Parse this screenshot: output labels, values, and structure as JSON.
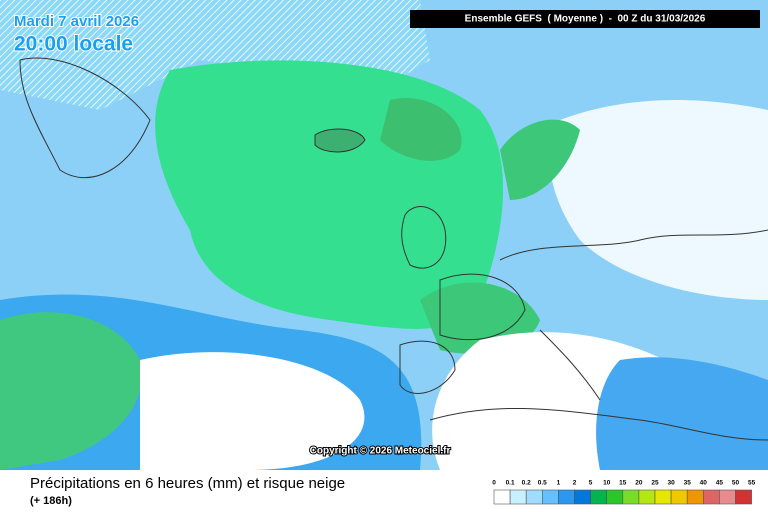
{
  "header": {
    "date": "Mardi 7 avril 2026",
    "time": "20:00 locale",
    "model": "Ensemble GEFS  ( Moyenne )  -  00 Z du 31/03/2026"
  },
  "copyright": "Copyright © 2026 Meteociel.fr",
  "footer": {
    "title": "Précipitations en 6 heures (mm) et risque neige",
    "lead": "(+ 186h)"
  },
  "legend": {
    "labels": [
      "0",
      "0.1",
      "0.2",
      "0.5",
      "1",
      "2",
      "5",
      "10",
      "15",
      "20",
      "25",
      "30",
      "35",
      "40",
      "45",
      "50",
      "55"
    ],
    "colors": [
      "#ffffff",
      "#c8f0ff",
      "#a0dcff",
      "#64c0ff",
      "#2898f0",
      "#0078dc",
      "#00b450",
      "#28c828",
      "#78dc28",
      "#b4e614",
      "#e6e600",
      "#f0c800",
      "#f09600",
      "#e06464",
      "#e68c8c",
      "#d23232"
    ]
  }
}
